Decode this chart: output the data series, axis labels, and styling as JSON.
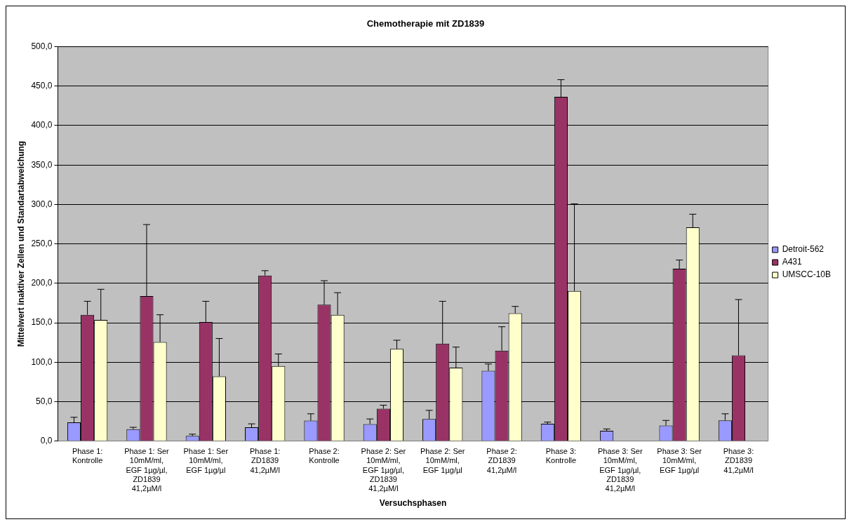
{
  "chart_data": {
    "type": "bar",
    "title": "Chemotherapie mit ZD1839",
    "xlabel": "Versuchsphasen",
    "ylabel": "Mittelwert inaktiver Zellen und Standartabweichung",
    "categories": [
      "Phase 1: Kontrolle",
      "Phase 1: Ser 10mM/ml, EGF 1µg/µl, ZD1839 41,2µM/l",
      "Phase 1: Ser 10mM/ml, EGF 1µg/µl",
      "Phase 1: ZD1839 41,2µM/l",
      "Phase 2: Kontrolle",
      "Phase 2: Ser 10mM/ml, EGF 1µg/µl, ZD1839 41,2µM/l",
      "Phase 2: Ser 10mM/ml, EGF 1µg/µl",
      "Phase 2: ZD1839 41,2µM/l",
      "Phase 3: Kontrolle",
      "Phase 3: Ser 10mM/ml, EGF 1µg/µl, ZD1839 41,2µM/l",
      "Phase 3: Ser 10mM/ml, EGF 1µg/µl",
      "Phase 3: ZD1839 41,2µM/l"
    ],
    "series": [
      {
        "name": "Detroit-562",
        "color": "#9999ff",
        "values": [
          23.6,
          14.9,
          6.5,
          17.4,
          25.8,
          21.4,
          28,
          89,
          21.8,
          13.1,
          19.6,
          26.1
        ],
        "errors": [
          [
            23.6,
            30.1
          ],
          [
            14.9,
            17.4
          ],
          [
            6.5,
            8.7
          ],
          [
            17.4,
            21.8
          ],
          [
            25.8,
            34.5
          ],
          [
            21.4,
            28
          ],
          [
            28,
            38.9
          ],
          [
            89,
            97.7
          ],
          [
            21.8,
            24
          ],
          [
            13.1,
            15.3
          ],
          [
            19.6,
            26.1
          ],
          [
            26.1,
            34.5
          ]
        ]
      },
      {
        "name": "A431",
        "color": "#993366",
        "values": [
          160.1,
          183.7,
          151,
          209.9,
          172.8,
          41,
          123.5,
          114.7,
          436.5,
          null,
          218.6,
          108.6
        ],
        "errors": [
          [
            160.1,
            177.2
          ],
          [
            183.7,
            274.5
          ],
          [
            151,
            177.2
          ],
          [
            209.9,
            216
          ],
          [
            172.8,
            203.3
          ],
          [
            41,
            45.4
          ],
          [
            123.5,
            177.2
          ],
          [
            114.7,
            144.9
          ],
          [
            436.5,
            458.2
          ],
          null,
          [
            218.6,
            229.5
          ],
          [
            108.6,
            179.4
          ]
        ]
      },
      {
        "name": "UMSCC-10B",
        "color": "#ffffcc",
        "values": [
          153.6,
          125.6,
          82,
          95.1,
          160.1,
          116.9,
          93,
          162,
          190.3,
          null,
          270.9,
          null
        ],
        "errors": [
          [
            153.6,
            192.4
          ],
          [
            125.6,
            160.1
          ],
          [
            82,
            130
          ],
          [
            95.1,
            110.4
          ],
          [
            160.1,
            188.1
          ],
          [
            116.9,
            127.8
          ],
          [
            93,
            119.1
          ],
          [
            162,
            170.7
          ],
          [
            190.3,
            300.7
          ],
          null,
          [
            270.9,
            287.6
          ],
          null
        ]
      }
    ],
    "ylim": [
      0,
      500
    ],
    "yticks": [
      {
        "value": 0,
        "label": "0,0"
      },
      {
        "value": 50,
        "label": "50,0"
      },
      {
        "value": 100,
        "label": "100,0"
      },
      {
        "value": 150,
        "label": "150,0"
      },
      {
        "value": 200,
        "label": "200,0"
      },
      {
        "value": 250,
        "label": "250,0"
      },
      {
        "value": 300,
        "label": "300,0"
      },
      {
        "value": 350,
        "label": "350,0"
      },
      {
        "value": 400,
        "label": "400,0"
      },
      {
        "value": 450,
        "label": "450,0"
      },
      {
        "value": 500,
        "label": "500,0"
      }
    ],
    "grid": "y",
    "legend": "right"
  }
}
